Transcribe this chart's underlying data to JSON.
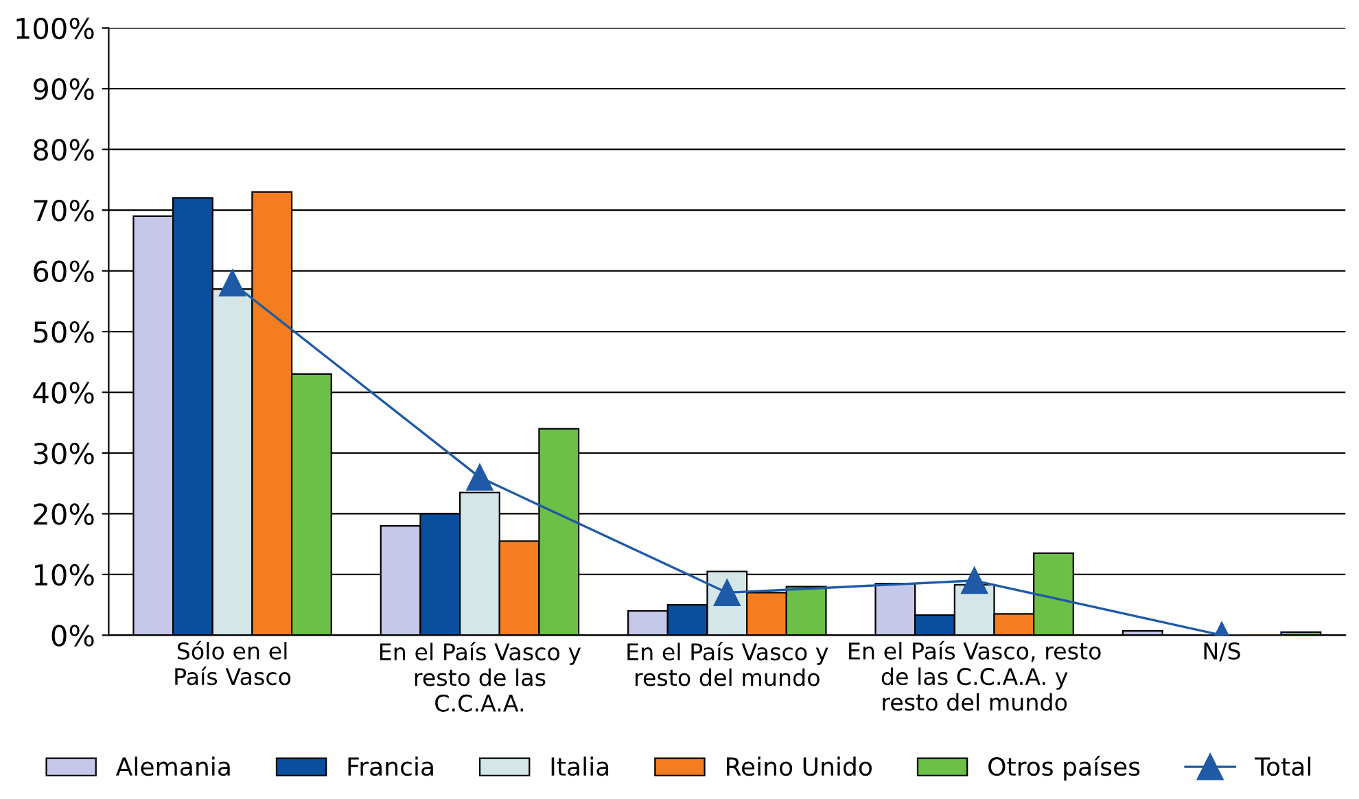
{
  "chart_data": {
    "type": "bar",
    "categories": [
      "Sólo en el\nPaís Vasco",
      "En el País Vasco y\nresto de las\nC.C.A.A.",
      "En el País Vasco y\nresto del mundo",
      "En el País Vasco, resto\nde las C.C.A.A. y\nresto del mundo",
      "N/S"
    ],
    "series": [
      {
        "name": "Alemania",
        "color": "#c5c8e8",
        "values": [
          69,
          18,
          4,
          8.5,
          0.7
        ]
      },
      {
        "name": "Francia",
        "color": "#0a4f9e",
        "values": [
          72,
          20,
          5,
          3.3,
          0
        ]
      },
      {
        "name": "Italia",
        "color": "#d4e6e8",
        "values": [
          57,
          23.5,
          10.5,
          8.3,
          0
        ]
      },
      {
        "name": "Reino Unido",
        "color": "#f47d20",
        "values": [
          73,
          15.5,
          7,
          3.5,
          0
        ]
      },
      {
        "name": "Otros países",
        "color": "#6cbf47",
        "values": [
          43,
          34,
          8,
          13.5,
          0.5
        ]
      },
      {
        "name": "Total",
        "color": "#1f5aa6",
        "type": "line",
        "marker": "triangle",
        "values": [
          58,
          26,
          7,
          9,
          0
        ]
      }
    ],
    "ylim": [
      0,
      100
    ],
    "yticks": [
      {
        "value": 0,
        "label": "0%"
      },
      {
        "value": 10,
        "label": "10%"
      },
      {
        "value": 20,
        "label": "20%"
      },
      {
        "value": 30,
        "label": "30%"
      },
      {
        "value": 40,
        "label": "40%"
      },
      {
        "value": 50,
        "label": "50%"
      },
      {
        "value": 60,
        "label": "60%"
      },
      {
        "value": 70,
        "label": "70%"
      },
      {
        "value": 80,
        "label": "80%"
      },
      {
        "value": 90,
        "label": "90%"
      },
      {
        "value": 100,
        "label": "100%"
      }
    ],
    "grid": "y",
    "legend": "bottom"
  }
}
